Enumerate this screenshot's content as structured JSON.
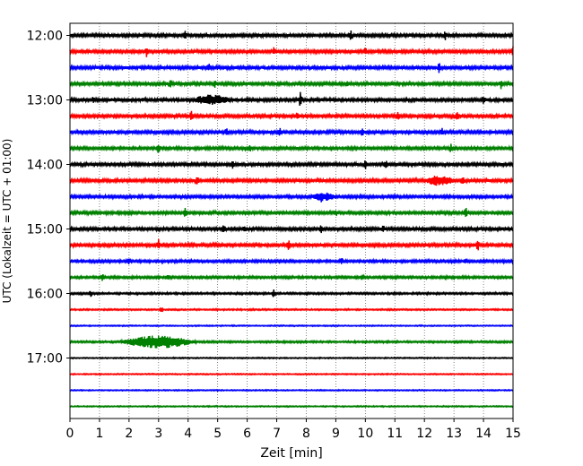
{
  "chart_data": {
    "type": "line",
    "title": "",
    "xlabel": "Zeit  [min]",
    "ylabel": "UTC (Lokalzeit = UTC + 01:00)",
    "xlim": [
      0,
      15
    ],
    "x_ticks": [
      "0",
      "1",
      "2",
      "3",
      "4",
      "5",
      "6",
      "7",
      "8",
      "9",
      "10",
      "11",
      "12",
      "13",
      "14",
      "15"
    ],
    "y_ticks": [
      "12:00",
      "13:00",
      "14:00",
      "15:00",
      "16:00",
      "17:00"
    ],
    "y_tick_row_index": [
      0,
      4,
      8,
      12,
      16,
      20
    ],
    "grid": "vertical-dotted",
    "colors": [
      "#000000",
      "#ff0000",
      "#0000ff",
      "#008000"
    ],
    "rows": [
      {
        "start": "12:00",
        "color": "#000000",
        "noise": 2.0,
        "spikes": [
          [
            3.9,
            6
          ],
          [
            9.5,
            5
          ],
          [
            12.7,
            4
          ]
        ],
        "bursts": []
      },
      {
        "start": "12:15",
        "color": "#ff0000",
        "noise": 2.0,
        "spikes": [
          [
            2.6,
            5
          ],
          [
            6.9,
            4
          ],
          [
            10.0,
            3
          ],
          [
            15.0,
            5
          ]
        ],
        "bursts": []
      },
      {
        "start": "12:30",
        "color": "#0000ff",
        "noise": 2.2,
        "spikes": [
          [
            4.7,
            3
          ],
          [
            12.5,
            5
          ]
        ],
        "bursts": []
      },
      {
        "start": "12:45",
        "color": "#008000",
        "noise": 2.0,
        "spikes": [
          [
            3.4,
            4
          ],
          [
            4.9,
            3
          ],
          [
            9.4,
            3
          ],
          [
            14.6,
            5
          ]
        ],
        "bursts": []
      },
      {
        "start": "13:00",
        "color": "#000000",
        "noise": 2.2,
        "spikes": [
          [
            0.8,
            3
          ],
          [
            7.8,
            7
          ],
          [
            14.0,
            4
          ]
        ],
        "bursts": [
          [
            4.8,
            0.6,
            4
          ]
        ]
      },
      {
        "start": "13:15",
        "color": "#ff0000",
        "noise": 2.0,
        "spikes": [
          [
            4.1,
            6
          ],
          [
            7.7,
            4
          ],
          [
            11.1,
            3
          ],
          [
            13.1,
            4
          ]
        ],
        "bursts": []
      },
      {
        "start": "13:30",
        "color": "#0000ff",
        "noise": 2.0,
        "spikes": [
          [
            5.3,
            4
          ],
          [
            7.1,
            5
          ],
          [
            9.9,
            3
          ],
          [
            12.6,
            4
          ]
        ],
        "bursts": []
      },
      {
        "start": "13:45",
        "color": "#008000",
        "noise": 1.8,
        "spikes": [
          [
            3.0,
            5
          ],
          [
            6.1,
            3
          ],
          [
            12.9,
            4
          ]
        ],
        "bursts": []
      },
      {
        "start": "14:00",
        "color": "#000000",
        "noise": 2.0,
        "spikes": [
          [
            5.5,
            5
          ],
          [
            10.0,
            4
          ],
          [
            10.7,
            4
          ]
        ],
        "bursts": []
      },
      {
        "start": "14:15",
        "color": "#ff0000",
        "noise": 2.0,
        "spikes": [
          [
            4.3,
            5
          ],
          [
            13.3,
            5
          ]
        ],
        "bursts": [
          [
            12.5,
            0.5,
            4
          ]
        ]
      },
      {
        "start": "14:30",
        "color": "#0000ff",
        "noise": 1.8,
        "spikes": [
          [
            8.5,
            6
          ]
        ],
        "bursts": [
          [
            8.6,
            0.4,
            3
          ]
        ]
      },
      {
        "start": "14:45",
        "color": "#008000",
        "noise": 1.8,
        "spikes": [
          [
            3.9,
            4
          ],
          [
            9.0,
            3
          ],
          [
            13.4,
            5
          ]
        ],
        "bursts": []
      },
      {
        "start": "15:00",
        "color": "#000000",
        "noise": 2.0,
        "spikes": [
          [
            5.2,
            4
          ],
          [
            5.9,
            3
          ],
          [
            8.5,
            5
          ],
          [
            10.6,
            3
          ]
        ],
        "bursts": []
      },
      {
        "start": "15:15",
        "color": "#ff0000",
        "noise": 2.0,
        "spikes": [
          [
            3.0,
            5
          ],
          [
            7.4,
            5
          ],
          [
            13.8,
            6
          ]
        ],
        "bursts": []
      },
      {
        "start": "15:30",
        "color": "#0000ff",
        "noise": 1.6,
        "spikes": [
          [
            2.0,
            3
          ],
          [
            9.2,
            3
          ],
          [
            13.4,
            3
          ]
        ],
        "bursts": []
      },
      {
        "start": "15:45",
        "color": "#008000",
        "noise": 1.5,
        "spikes": [
          [
            1.1,
            5
          ],
          [
            3.3,
            3
          ],
          [
            9.9,
            2
          ]
        ],
        "bursts": []
      },
      {
        "start": "16:00",
        "color": "#000000",
        "noise": 1.2,
        "spikes": [
          [
            0.7,
            3
          ],
          [
            6.9,
            6
          ]
        ],
        "bursts": []
      },
      {
        "start": "16:15",
        "color": "#ff0000",
        "noise": 0.9,
        "spikes": [
          [
            3.1,
            3
          ]
        ],
        "bursts": []
      },
      {
        "start": "16:30",
        "color": "#0000ff",
        "noise": 0.7,
        "spikes": [],
        "bursts": []
      },
      {
        "start": "16:45",
        "color": "#008000",
        "noise": 1.2,
        "spikes": [],
        "bursts": [
          [
            3.0,
            1.3,
            6
          ]
        ]
      },
      {
        "start": "17:00",
        "color": "#000000",
        "noise": 0.7,
        "spikes": [],
        "bursts": []
      },
      {
        "start": "17:15",
        "color": "#ff0000",
        "noise": 0.7,
        "spikes": [],
        "bursts": []
      },
      {
        "start": "17:30",
        "color": "#0000ff",
        "noise": 0.7,
        "spikes": [],
        "bursts": []
      },
      {
        "start": "17:45",
        "color": "#008000",
        "noise": 0.7,
        "spikes": [],
        "bursts": []
      }
    ]
  }
}
